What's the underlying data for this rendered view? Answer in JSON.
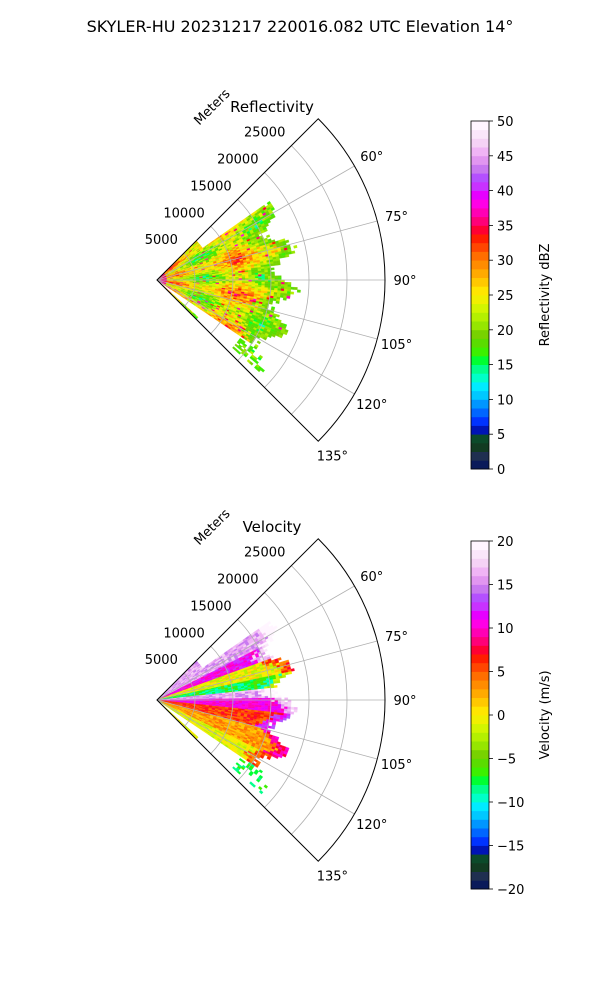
{
  "suptitle": "SKYLER-HU  20231217  220016.082 UTC Elevation 14°",
  "chart_data": [
    {
      "type": "heatmap",
      "projection": "polar-sector",
      "title": "Reflectivity",
      "radial_label": "Meters",
      "radial_ticks": [
        5000,
        10000,
        15000,
        20000,
        25000
      ],
      "radial_tick_labels": [
        "5000",
        "10000",
        "15000",
        "20000",
        "25000"
      ],
      "angle_ticks": [
        60,
        75,
        90,
        105,
        120,
        135
      ],
      "angle_tick_labels": [
        "60°",
        "75°",
        "90°",
        "105°",
        "120°",
        "135°"
      ],
      "theta_range_deg": [
        45,
        135
      ],
      "r_max": 30000,
      "data_r_max": 18000,
      "grid": true,
      "colorbar": {
        "label": "Reflectivity dBZ",
        "range": [
          0,
          50
        ],
        "ticks": [
          0,
          5,
          10,
          15,
          20,
          25,
          30,
          35,
          40,
          45,
          50
        ],
        "tick_labels": [
          "0",
          "5",
          "10",
          "15",
          "20",
          "25",
          "30",
          "35",
          "40",
          "45",
          "50"
        ],
        "colors": [
          "#0a1a5a",
          "#1f2f50",
          "#123b22",
          "#0b4a2a",
          "#0014b4",
          "#0033ff",
          "#0066ff",
          "#0096ff",
          "#00c8ff",
          "#00ebff",
          "#00ffc8",
          "#00ff8c",
          "#00ff32",
          "#3cf000",
          "#5adc00",
          "#78d200",
          "#96e600",
          "#b4f000",
          "#d2f500",
          "#f0f000",
          "#ffe600",
          "#ffc800",
          "#ffaa00",
          "#ff8c00",
          "#ff6e00",
          "#ff4600",
          "#ff1e00",
          "#ff0032",
          "#ff0078",
          "#ff00b4",
          "#ff00e6",
          "#e600ff",
          "#c832ff",
          "#b450ff",
          "#c878f0",
          "#e196f0",
          "#f0b4f5",
          "#f5d2f5",
          "#fae6fa",
          "#fff5ff"
        ]
      },
      "field": "reflectivity"
    },
    {
      "type": "heatmap",
      "projection": "polar-sector",
      "title": "Velocity",
      "radial_label": "Meters",
      "radial_ticks": [
        5000,
        10000,
        15000,
        20000,
        25000
      ],
      "radial_tick_labels": [
        "5000",
        "10000",
        "15000",
        "20000",
        "25000"
      ],
      "angle_ticks": [
        60,
        75,
        90,
        105,
        120,
        135
      ],
      "angle_tick_labels": [
        "60°",
        "75°",
        "90°",
        "105°",
        "120°",
        "135°"
      ],
      "theta_range_deg": [
        45,
        135
      ],
      "r_max": 30000,
      "data_r_max": 18000,
      "grid": true,
      "colorbar": {
        "label": "Velocity (m/s)",
        "range": [
          -20,
          20
        ],
        "ticks": [
          -20,
          -15,
          -10,
          -5,
          0,
          5,
          10,
          15,
          20
        ],
        "tick_labels": [
          "−20",
          "−15",
          "−10",
          "−5",
          "0",
          "5",
          "10",
          "15",
          "20"
        ],
        "colors": [
          "#0a1a5a",
          "#1f2f50",
          "#123b22",
          "#0b4a2a",
          "#0014b4",
          "#0033ff",
          "#0066ff",
          "#0096ff",
          "#00c8ff",
          "#00ebff",
          "#00ffc8",
          "#00ff8c",
          "#00ff32",
          "#3cf000",
          "#5adc00",
          "#78d200",
          "#96e600",
          "#b4f000",
          "#d2f500",
          "#f0f000",
          "#ffe600",
          "#ffc800",
          "#ffaa00",
          "#ff8c00",
          "#ff6e00",
          "#ff4600",
          "#ff1e00",
          "#ff0032",
          "#ff0078",
          "#ff00b4",
          "#ff00e6",
          "#e600ff",
          "#c832ff",
          "#b450ff",
          "#c878f0",
          "#e196f0",
          "#f0b4f5",
          "#f5d2f5",
          "#fae6fa",
          "#fff5ff"
        ]
      },
      "field": "velocity"
    }
  ]
}
